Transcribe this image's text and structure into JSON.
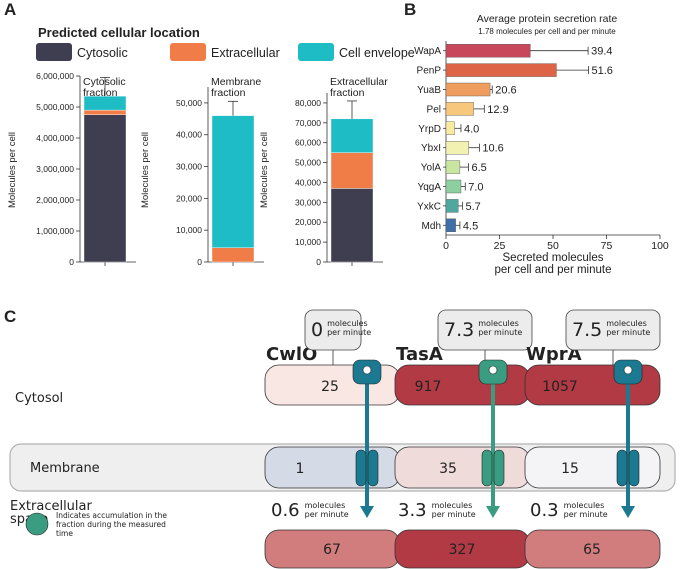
{
  "panels": [
    "A",
    "B",
    "C"
  ],
  "chart_data": [
    {
      "type": "stacked-bar",
      "legend_title": "Predicted cellular location",
      "title": "Cytosolic\nfraction",
      "y_label": "Molecules per cell",
      "categories": [
        null
      ],
      "series": [
        {
          "name": "Cytosolic",
          "color": "#3f3d50",
          "values": [
            4750000
          ]
        },
        {
          "name": "Extracellular",
          "color": "#f07d47",
          "values": [
            150000
          ]
        },
        {
          "name": "Cell envelope",
          "color": "#1ebcc5",
          "values": [
            450000
          ]
        }
      ],
      "errors": [
        600000
      ],
      "ylim": [
        0,
        6000000
      ],
      "yticks": [
        0,
        {
          "value": 1000000,
          "label": "1,000,000"
        },
        {
          "value": 2000000,
          "label": "2,000,000"
        },
        {
          "value": 3000000,
          "label": "3,000,000"
        },
        {
          "value": 4000000,
          "label": "4,000,000"
        },
        {
          "value": 5000000,
          "label": "5,000,000"
        },
        {
          "value": 6000000,
          "label": "6,000,000"
        }
      ]
    },
    {
      "type": "stacked-bar",
      "title": "Membrane\nfraction",
      "y_label": "Molecules per cell",
      "categories": [
        null
      ],
      "series": [
        {
          "color": "#3f3d50",
          "values": [
            0
          ]
        },
        {
          "color": "#f07d47",
          "values": [
            4500
          ]
        },
        {
          "color": "#1ebcc5",
          "values": [
            41500
          ]
        }
      ],
      "errors": [
        4500
      ],
      "ylim": [
        0,
        55000
      ],
      "yticks": [
        0,
        {
          "value": 10000,
          "label": "10,000"
        },
        {
          "value": 20000,
          "label": "20,000"
        },
        {
          "value": 30000,
          "label": "30,000"
        },
        {
          "value": 40000,
          "label": "40,000"
        },
        {
          "value": 50000,
          "label": "50,000"
        }
      ]
    },
    {
      "type": "stacked-bar",
      "title": "Extracellular\nfraction",
      "y_label": "Molecules per cell",
      "categories": [
        null
      ],
      "series": [
        {
          "color": "#3f3d50",
          "values": [
            37000
          ]
        },
        {
          "color": "#f07d47",
          "values": [
            18000
          ]
        },
        {
          "color": "#1ebcc5",
          "values": [
            17000
          ]
        }
      ],
      "errors": [
        9000
      ],
      "ylim": [
        0,
        85000
      ],
      "yticks": [
        0,
        {
          "value": 10000,
          "label": "10,000"
        },
        {
          "value": 20000,
          "label": "20,000"
        },
        {
          "value": 30000,
          "label": "30,000"
        },
        {
          "value": 40000,
          "label": "40,000"
        },
        {
          "value": 50000,
          "label": "50,000"
        },
        {
          "value": 60000,
          "label": "60,000"
        },
        {
          "value": 70000,
          "label": "70,000"
        },
        {
          "value": 80000,
          "label": "80,000"
        }
      ]
    },
    {
      "type": "hbar",
      "title": "Average protein secretion rate",
      "subtitle": "1.78 molecules per cell and per minute",
      "x_label": "Secreted molecules\nper cell and per minute",
      "categories": [
        "WapA",
        "PenP",
        "YuaB",
        "Pel",
        "YrpD",
        "YbxI",
        "YolA",
        "YqgA",
        "YxkC",
        "Mdh"
      ],
      "values": [
        39.4,
        51.6,
        20.6,
        12.9,
        4.0,
        10.6,
        6.5,
        7.0,
        5.7,
        4.5
      ],
      "value_labels": [
        "39.4",
        "51.6",
        "20.6",
        "12.9",
        "4.0",
        "10.6",
        "6.5",
        "7.0",
        "5.7",
        "4.5"
      ],
      "errors": [
        27,
        15,
        1,
        5,
        3,
        5,
        4,
        2,
        2,
        2
      ],
      "colors": [
        "#c8475b",
        "#de6448",
        "#ef9d5e",
        "#f7c87c",
        "#f8ea9f",
        "#f3f1b2",
        "#c9e6a1",
        "#8dcf9e",
        "#4fa89e",
        "#3f6ea8"
      ],
      "xlim": [
        0,
        100
      ],
      "xticks": [
        0,
        25,
        50,
        75,
        100
      ]
    }
  ],
  "diagram": {
    "compartments": [
      "Cytosol",
      "Membrane",
      "Extracellular\nspace"
    ],
    "rate_unit": "molecules\nper minute",
    "proteins": [
      {
        "name": "CwlO",
        "cytosol": 25,
        "membrane": 1,
        "extracellular": 67,
        "export_rate": 0,
        "secretion_rate": 0.6
      },
      {
        "name": "TasA",
        "cytosol": 917,
        "membrane": 35,
        "extracellular": 327,
        "export_rate": 7.3,
        "secretion_rate": 3.3
      },
      {
        "name": "WprA",
        "cytosol": 1057,
        "membrane": 15,
        "extracellular": 65,
        "export_rate": 7.5,
        "secretion_rate": 0.3
      }
    ],
    "legend": "Indicates accumulation in the\nfraction during the measured\ntime"
  }
}
